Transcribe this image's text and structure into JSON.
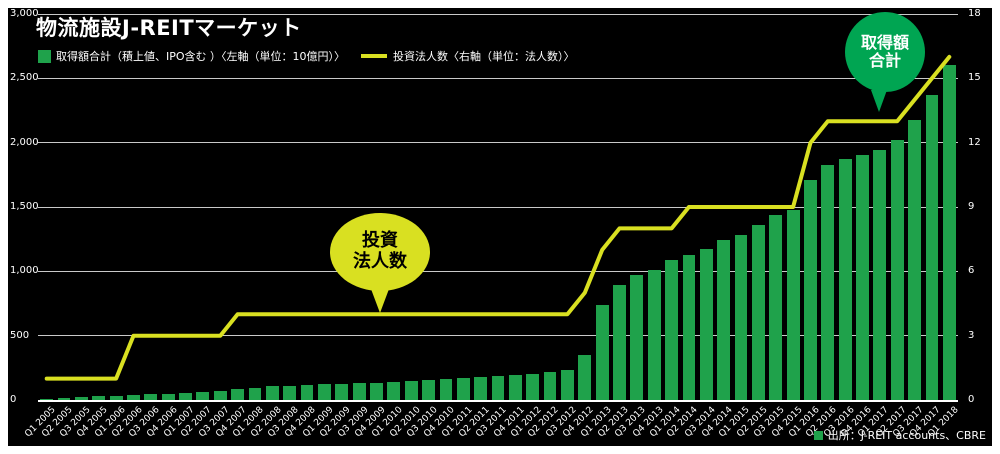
{
  "title": "物流施設J-REITマーケット",
  "legend": {
    "bars_label": "取得額合計（積上値、IPO含む ）〈左軸（単位：10億円）〉",
    "line_label": "投資法人数〈右軸（単位：法人数）〉"
  },
  "callouts": {
    "line_callout": {
      "line1": "投資",
      "line2": "法人数"
    },
    "bar_callout": {
      "line1": "取得額",
      "line2": "合計"
    }
  },
  "source": {
    "label": "出所：J-REIT accounts、CBRE"
  },
  "colors": {
    "bar": "#1fa24b",
    "line": "#d9e021",
    "bar_callout": "#00a552",
    "background": "#000000",
    "frame": "#ffffff",
    "grid": "#c9c9c9",
    "text": "#ffffff"
  },
  "chart_data": {
    "type": "bar+line",
    "title": "物流施設J-REITマーケット",
    "grid": true,
    "legend_position": "top",
    "categories": [
      "Q1 2005",
      "Q2 2005",
      "Q3 2005",
      "Q4 2005",
      "Q1 2006",
      "Q2 2006",
      "Q3 2006",
      "Q4 2006",
      "Q1 2007",
      "Q2 2007",
      "Q3 2007",
      "Q4 2007",
      "Q1 2008",
      "Q2 2008",
      "Q3 2008",
      "Q4 2008",
      "Q1 2009",
      "Q2 2009",
      "Q3 2009",
      "Q4 2009",
      "Q1 2010",
      "Q2 2010",
      "Q3 2010",
      "Q4 2010",
      "Q1 2011",
      "Q2 2011",
      "Q3 2011",
      "Q4 2011",
      "Q1 2012",
      "Q2 2012",
      "Q3 2012",
      "Q4 2012",
      "Q1 2013",
      "Q2 2013",
      "Q3 2013",
      "Q4 2013",
      "Q1 2014",
      "Q2 2014",
      "Q3 2014",
      "Q4 2014",
      "Q1 2015",
      "Q2 2015",
      "Q3 2015",
      "Q4 2015",
      "Q1 2016",
      "Q2 2016",
      "Q3 2016",
      "Q4 2016",
      "Q1 2017",
      "Q2 2017",
      "Q3 2017",
      "Q4 2017",
      "Q1 2018"
    ],
    "series": [
      {
        "name": "取得額合計（積上値、IPO含む）",
        "type": "bar",
        "axis": "left",
        "unit": "10億円",
        "values": [
          10,
          18,
          22,
          28,
          33,
          38,
          44,
          50,
          55,
          62,
          72,
          85,
          95,
          105,
          112,
          118,
          122,
          126,
          130,
          135,
          140,
          148,
          155,
          162,
          170,
          178,
          186,
          194,
          202,
          215,
          235,
          350,
          740,
          895,
          970,
          1010,
          1090,
          1130,
          1170,
          1245,
          1280,
          1360,
          1440,
          1480,
          1710,
          1830,
          1870,
          1906,
          1945,
          2020,
          2180,
          2370,
          2600
        ]
      },
      {
        "name": "投資法人数",
        "type": "line",
        "axis": "right",
        "unit": "法人数",
        "values": [
          1,
          1,
          1,
          1,
          1,
          3,
          3,
          3,
          3,
          3,
          3,
          4,
          4,
          4,
          4,
          4,
          4,
          4,
          4,
          4,
          4,
          4,
          4,
          4,
          4,
          4,
          4,
          4,
          4,
          4,
          4,
          5,
          7,
          8,
          8,
          8,
          8,
          9,
          9,
          9,
          9,
          9,
          9,
          9,
          12,
          13,
          13,
          13,
          13,
          13,
          14,
          15,
          16
        ]
      }
    ],
    "left_axis": {
      "min": 0,
      "max": 3000,
      "ticks": [
        0,
        500,
        1000,
        1500,
        2000,
        2500,
        3000
      ],
      "tick_labels": [
        "0",
        "500",
        "1,000",
        "1,500",
        "2,000",
        "2,500",
        "3,000"
      ],
      "unit": "10億円"
    },
    "right_axis": {
      "min": 0,
      "max": 18,
      "ticks": [
        0,
        3,
        6,
        9,
        12,
        15,
        18
      ],
      "tick_labels": [
        "0",
        "3",
        "6",
        "9",
        "12",
        "15",
        "18"
      ],
      "unit": "法人数"
    }
  }
}
